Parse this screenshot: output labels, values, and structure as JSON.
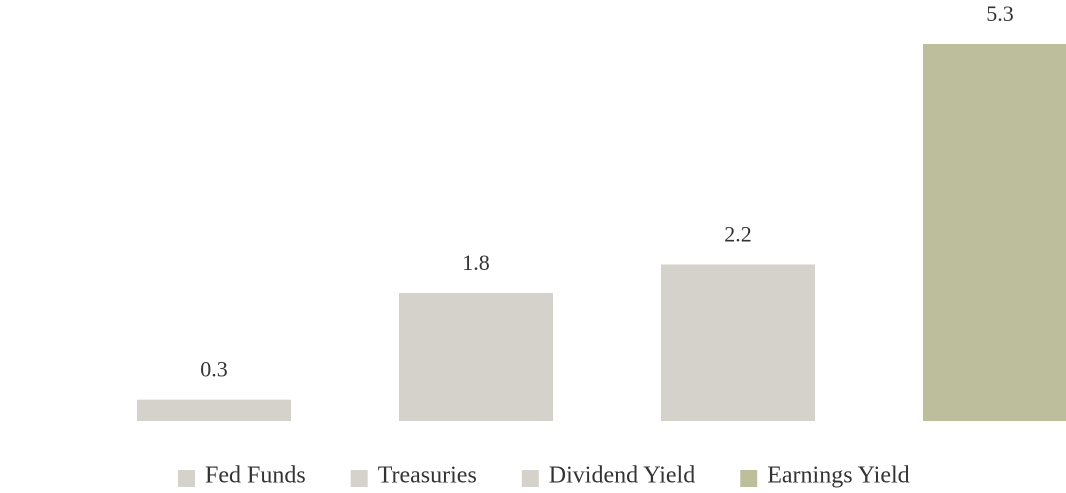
{
  "chart_data": {
    "type": "bar",
    "categories": [
      "Fed Funds",
      "Treasuries",
      "Dividend Yield",
      "Earnings Yield"
    ],
    "values": [
      0.3,
      1.8,
      2.2,
      5.3
    ],
    "colors": [
      "#d5d2cc",
      "#d5d2cc",
      "#d5d2cc",
      "#bcbe9c"
    ]
  }
}
